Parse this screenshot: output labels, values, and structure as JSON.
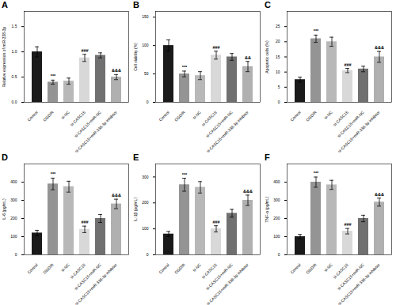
{
  "chart_data": [
    {
      "type": "bar",
      "title": "A",
      "ylabel": "Relative expression of miR-338-3p",
      "categories": [
        "Control",
        "OGD/R",
        "si-NC",
        "si-CASC15",
        "si-CASC15+miR-NC",
        "si-CASC15+miR-338-3p inhibitor"
      ],
      "values": [
        1.0,
        0.4,
        0.42,
        0.88,
        0.93,
        0.5
      ],
      "errors": [
        0.1,
        0.04,
        0.06,
        0.07,
        0.05,
        0.05
      ],
      "annotations": [
        null,
        "***",
        null,
        "###",
        null,
        "&&&"
      ],
      "colors": [
        "#1a1a1a",
        "#949494",
        "#b8b8b8",
        "#d8d8d8",
        "#707070",
        "#b0b0b0"
      ],
      "ylim": [
        0,
        1.8
      ],
      "yticks": [
        {
          "value": 0,
          "label": "0.0"
        },
        0.5,
        {
          "value": 1,
          "label": "1.0"
        },
        1.5
      ],
      "grid": false
    },
    {
      "type": "bar",
      "title": "B",
      "ylabel": "Cell viability (%)",
      "categories": [
        "Control",
        "OGD/R",
        "si-NC",
        "si-CASC15",
        "si-CASC15+miR-NC",
        "si-CASC15+miR-338-3p inhibitor"
      ],
      "values": [
        100,
        50,
        47,
        83,
        80,
        63
      ],
      "errors": [
        10,
        5,
        7,
        7,
        6,
        9
      ],
      "annotations": [
        null,
        "***",
        null,
        "###",
        null,
        "&&"
      ],
      "colors": [
        "#1a1a1a",
        "#949494",
        "#b8b8b8",
        "#d8d8d8",
        "#707070",
        "#b0b0b0"
      ],
      "ylim": [
        0,
        160
      ],
      "yticks": [
        0,
        50,
        100,
        150
      ],
      "grid": false
    },
    {
      "type": "bar",
      "title": "C",
      "ylabel": "Apoptotic cells (%)",
      "categories": [
        "Control",
        "OGD/R",
        "si-NC",
        "si-CASC15",
        "si-CASC15+miR-NC",
        "si-CASC15+miR-338-3p inhibitor"
      ],
      "values": [
        7.5,
        21.0,
        20.0,
        10.5,
        11.0,
        15.0
      ],
      "errors": [
        0.8,
        1.2,
        1.5,
        0.7,
        0.9,
        1.8
      ],
      "annotations": [
        null,
        "***",
        null,
        "###",
        null,
        "&&&"
      ],
      "colors": [
        "#1a1a1a",
        "#949494",
        "#b8b8b8",
        "#d8d8d8",
        "#707070",
        "#b0b0b0"
      ],
      "ylim": [
        0,
        30
      ],
      "yticks": [
        0,
        5,
        10,
        15,
        20,
        25
      ],
      "grid": false
    },
    {
      "type": "bar",
      "title": "D",
      "ylabel": "IL-6 (pg/mL)",
      "categories": [
        "Control",
        "OGD/R",
        "si-NC",
        "si-CASC15",
        "si-CASC15+miR-NC",
        "si-CASC15+miR-338-3p inhibitor"
      ],
      "values": [
        120,
        390,
        375,
        140,
        200,
        280
      ],
      "errors": [
        15,
        32,
        30,
        18,
        22,
        26
      ],
      "annotations": [
        null,
        "***",
        null,
        "###",
        null,
        "&&&"
      ],
      "colors": [
        "#1a1a1a",
        "#949494",
        "#b8b8b8",
        "#d8d8d8",
        "#707070",
        "#b0b0b0"
      ],
      "ylim": [
        0,
        500
      ],
      "yticks": [
        0,
        100,
        200,
        300,
        400
      ],
      "grid": false
    },
    {
      "type": "bar",
      "title": "E",
      "ylabel": "IL-1β (pg/mL)",
      "categories": [
        "Control",
        "OGD/R",
        "si-NC",
        "si-CASC15",
        "si-CASC15+miR-NC",
        "si-CASC15+miR-338-3p inhibitor"
      ],
      "values": [
        80,
        270,
        260,
        100,
        160,
        210
      ],
      "errors": [
        10,
        25,
        22,
        12,
        15,
        20
      ],
      "annotations": [
        null,
        "***",
        null,
        "###",
        null,
        "&&&"
      ],
      "colors": [
        "#1a1a1a",
        "#949494",
        "#b8b8b8",
        "#d8d8d8",
        "#707070",
        "#b0b0b0"
      ],
      "ylim": [
        0,
        350
      ],
      "yticks": [
        0,
        100,
        200,
        300
      ],
      "grid": false
    },
    {
      "type": "bar",
      "title": "F",
      "ylabel": "TNF-α (pg/mL)",
      "categories": [
        "Control",
        "OGD/R",
        "si-NC",
        "si-CASC15",
        "si-CASC15+miR-NC",
        "si-CASC15+miR-338-3p inhibitor"
      ],
      "values": [
        100,
        400,
        385,
        130,
        200,
        290
      ],
      "errors": [
        12,
        28,
        25,
        15,
        18,
        22
      ],
      "annotations": [
        null,
        "***",
        null,
        "###",
        null,
        "&&&"
      ],
      "colors": [
        "#1a1a1a",
        "#949494",
        "#b8b8b8",
        "#d8d8d8",
        "#707070",
        "#b0b0b0"
      ],
      "ylim": [
        0,
        500
      ],
      "yticks": [
        0,
        100,
        200,
        300,
        400
      ],
      "grid": false
    }
  ]
}
